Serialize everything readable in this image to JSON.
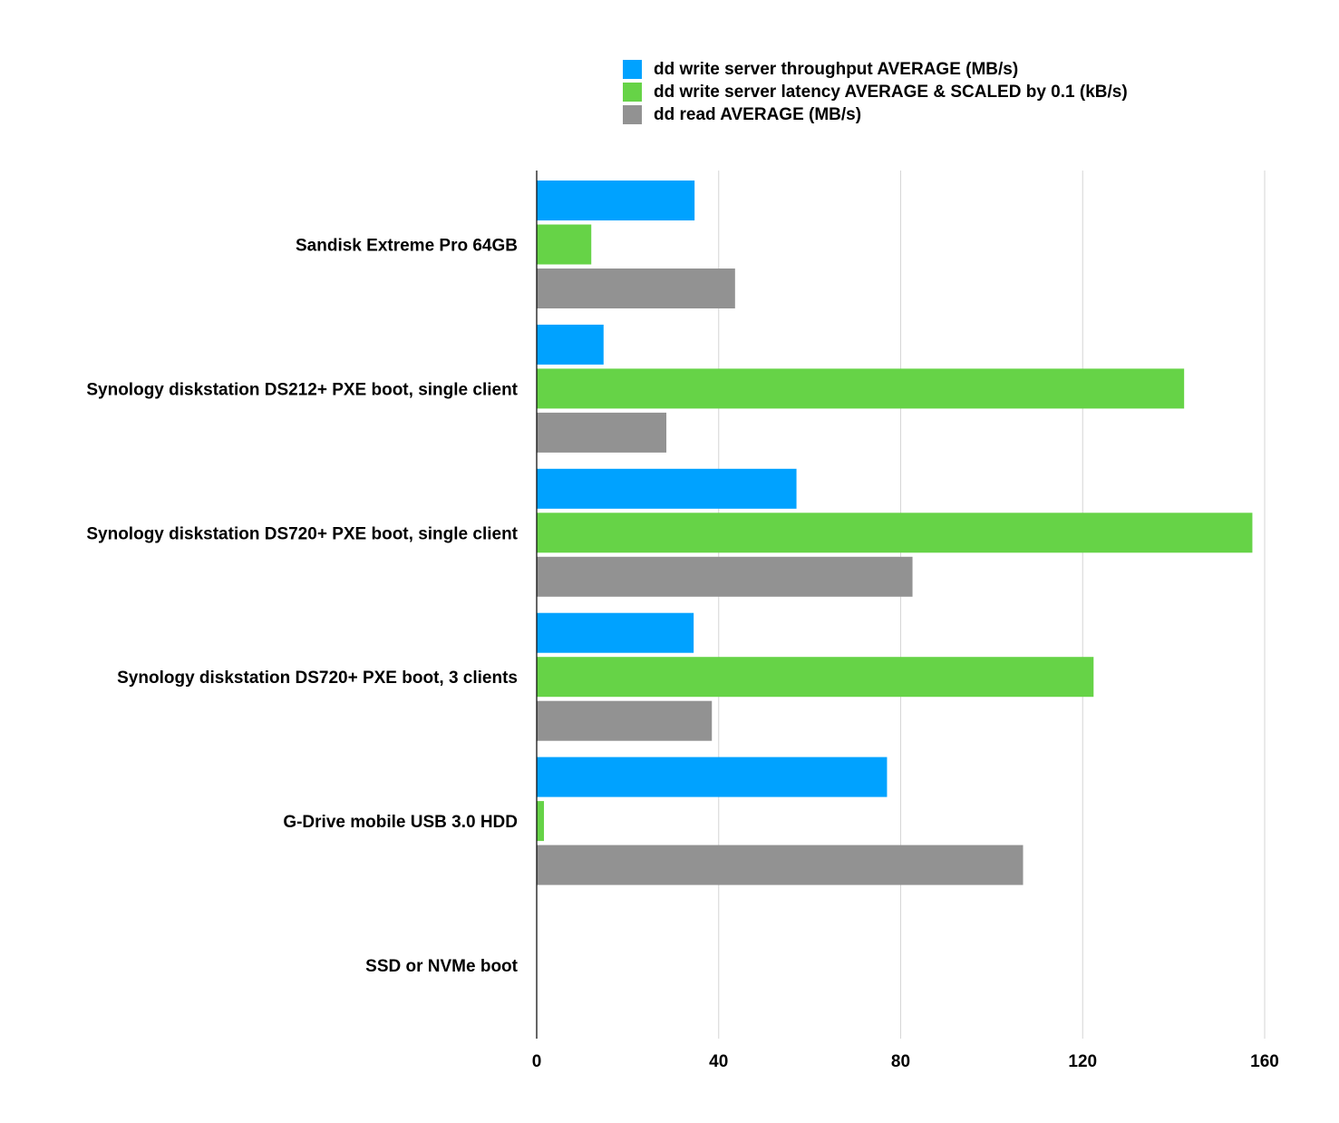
{
  "chart_data": {
    "type": "bar",
    "orientation": "horizontal",
    "categories": [
      "Sandisk Extreme Pro 64GB",
      "Synology diskstation DS212+ PXE boot, single client",
      "Synology diskstation DS720+ PXE boot, single client",
      "Synology diskstation DS720+ PXE boot, 3 clients",
      "G-Drive mobile USB 3.0 HDD",
      "SSD or NVMe boot"
    ],
    "series": [
      {
        "name": "dd write server throughput AVERAGE (MB/s)",
        "color": "#00a2ff",
        "values": [
          34.7,
          14.7,
          57.1,
          34.5,
          77.0,
          null
        ]
      },
      {
        "name": "dd write server latency AVERAGE & SCALED by 0.1 (kB/s)",
        "color": "#66d347",
        "values": [
          12.0,
          142.3,
          157.3,
          122.4,
          1.6,
          null
        ]
      },
      {
        "name": "dd read AVERAGE (MB/s)",
        "color": "#929292",
        "values": [
          43.6,
          28.5,
          82.6,
          38.5,
          106.9,
          null
        ]
      }
    ],
    "xlim": [
      0,
      160
    ],
    "xticks": [
      "0",
      "40",
      "80",
      "120",
      "160"
    ],
    "grid": true,
    "legend_position": "top-right",
    "title": "",
    "xlabel": "",
    "ylabel": ""
  }
}
